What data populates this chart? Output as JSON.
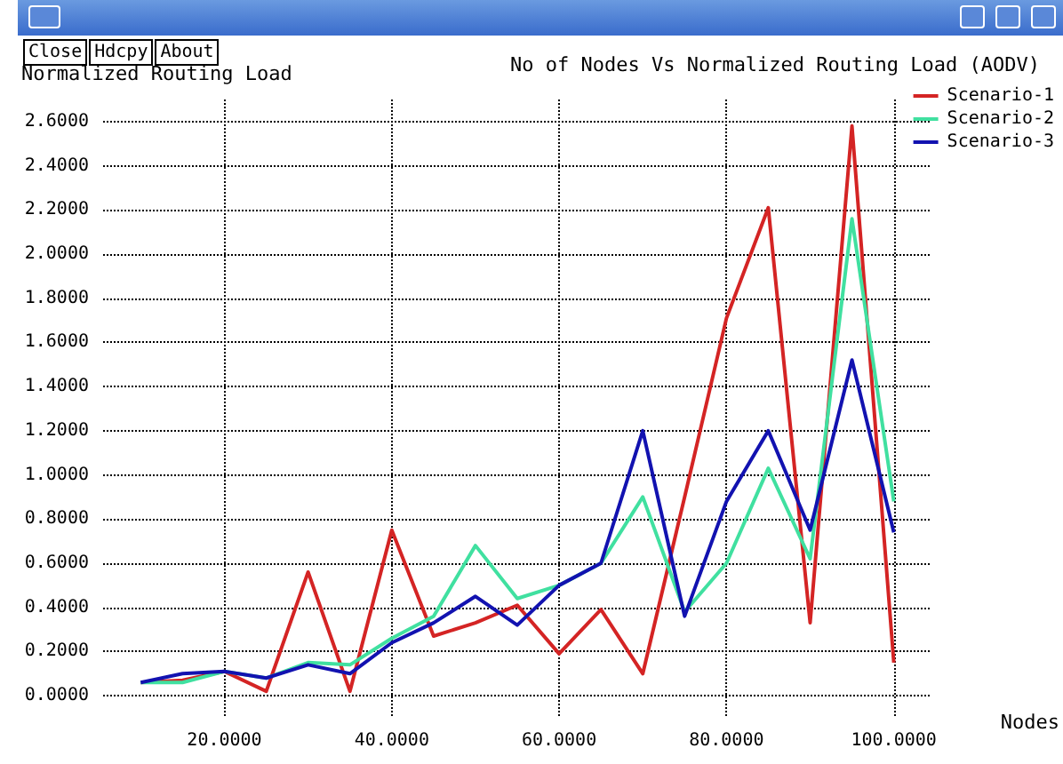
{
  "chart_data": {
    "type": "line",
    "title": "No of Nodes Vs Normalized Routing Load (AODV)",
    "xlabel": "Nodes",
    "ylabel": "Normalized Routing Load",
    "annotations": [
      "Close",
      "Hdcpy",
      "About"
    ],
    "x": [
      10,
      15,
      20,
      25,
      30,
      35,
      40,
      45,
      50,
      55,
      60,
      65,
      70,
      75,
      80,
      85,
      90,
      95,
      100
    ],
    "series": [
      {
        "name": "Scenario-1",
        "color": "#d42424",
        "values": [
          0.06,
          0.07,
          0.11,
          0.02,
          0.56,
          0.02,
          0.75,
          0.27,
          0.33,
          0.41,
          0.19,
          0.39,
          0.1,
          0.9,
          1.71,
          2.21,
          0.33,
          2.58,
          0.15
        ]
      },
      {
        "name": "Scenario-2",
        "color": "#40e0a0",
        "values": [
          0.06,
          0.06,
          0.11,
          0.08,
          0.15,
          0.14,
          0.26,
          0.36,
          0.68,
          0.44,
          0.5,
          0.6,
          0.9,
          0.38,
          0.6,
          1.03,
          0.62,
          2.16,
          0.88
        ]
      },
      {
        "name": "Scenario-3",
        "color": "#1212b0",
        "values": [
          0.06,
          0.1,
          0.11,
          0.08,
          0.14,
          0.1,
          0.24,
          0.33,
          0.45,
          0.32,
          0.5,
          0.6,
          1.2,
          0.36,
          0.88,
          1.2,
          0.75,
          1.52,
          0.74
        ]
      }
    ],
    "xlim": [
      5.5,
      104.5
    ],
    "ylim": [
      -0.1,
      2.7
    ],
    "xticks": [
      {
        "value": 20,
        "label": "20.0000"
      },
      {
        "value": 40,
        "label": "40.0000"
      },
      {
        "value": 60,
        "label": "60.0000"
      },
      {
        "value": 80,
        "label": "80.0000"
      },
      {
        "value": 100,
        "label": "100.0000"
      }
    ],
    "yticks": [
      {
        "value": 0,
        "label": "0.0000"
      },
      {
        "value": 0.2,
        "label": "0.2000"
      },
      {
        "value": 0.4,
        "label": "0.4000"
      },
      {
        "value": 0.6,
        "label": "0.6000"
      },
      {
        "value": 0.8,
        "label": "0.8000"
      },
      {
        "value": 1,
        "label": "1.0000"
      },
      {
        "value": 1.2,
        "label": "1.2000"
      },
      {
        "value": 1.4,
        "label": "1.4000"
      },
      {
        "value": 1.6,
        "label": "1.6000"
      },
      {
        "value": 1.8,
        "label": "1.8000"
      },
      {
        "value": 2,
        "label": "2.0000"
      },
      {
        "value": 2.2,
        "label": "2.2000"
      },
      {
        "value": 2.4,
        "label": "2.4000"
      },
      {
        "value": 2.6,
        "label": "2.6000"
      }
    ],
    "grid": true,
    "legend": "top right",
    "marker": "none",
    "line_style": "solid"
  }
}
